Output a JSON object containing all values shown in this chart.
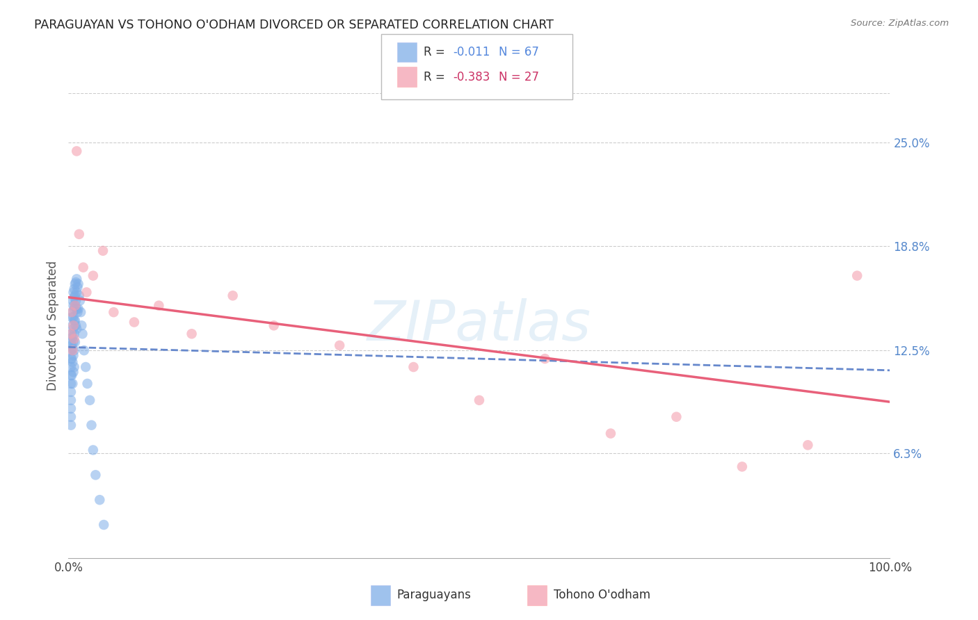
{
  "title": "PARAGUAYAN VS TOHONO O'ODHAM DIVORCED OR SEPARATED CORRELATION CHART",
  "source": "Source: ZipAtlas.com",
  "ylabel": "Divorced or Separated",
  "watermark": "ZIPatlas",
  "ytick_labels": [
    "25.0%",
    "18.8%",
    "12.5%",
    "6.3%"
  ],
  "ytick_values": [
    0.25,
    0.188,
    0.125,
    0.063
  ],
  "xmin": 0.0,
  "xmax": 1.0,
  "ymin": 0.0,
  "ymax": 0.28,
  "blue_color": "#7faee8",
  "pink_color": "#f4a0b0",
  "blue_line_color": "#6688cc",
  "pink_line_color": "#e8607a",
  "paraguayan_x": [
    0.003,
    0.003,
    0.003,
    0.003,
    0.003,
    0.003,
    0.003,
    0.003,
    0.003,
    0.003,
    0.003,
    0.004,
    0.004,
    0.004,
    0.004,
    0.004,
    0.005,
    0.005,
    0.005,
    0.005,
    0.005,
    0.005,
    0.005,
    0.006,
    0.006,
    0.006,
    0.006,
    0.006,
    0.006,
    0.006,
    0.007,
    0.007,
    0.007,
    0.007,
    0.007,
    0.007,
    0.007,
    0.008,
    0.008,
    0.008,
    0.008,
    0.008,
    0.009,
    0.009,
    0.009,
    0.01,
    0.01,
    0.01,
    0.01,
    0.011,
    0.011,
    0.012,
    0.012,
    0.013,
    0.014,
    0.015,
    0.016,
    0.017,
    0.019,
    0.021,
    0.023,
    0.026,
    0.028,
    0.03,
    0.033,
    0.038,
    0.043
  ],
  "paraguayan_y": [
    0.13,
    0.125,
    0.12,
    0.115,
    0.11,
    0.105,
    0.1,
    0.095,
    0.09,
    0.085,
    0.08,
    0.145,
    0.135,
    0.128,
    0.12,
    0.11,
    0.155,
    0.148,
    0.14,
    0.133,
    0.126,
    0.118,
    0.105,
    0.16,
    0.152,
    0.145,
    0.138,
    0.13,
    0.122,
    0.112,
    0.162,
    0.157,
    0.15,
    0.143,
    0.135,
    0.125,
    0.115,
    0.165,
    0.158,
    0.152,
    0.143,
    0.13,
    0.166,
    0.155,
    0.14,
    0.168,
    0.16,
    0.15,
    0.138,
    0.163,
    0.148,
    0.165,
    0.15,
    0.158,
    0.155,
    0.148,
    0.14,
    0.135,
    0.125,
    0.115,
    0.105,
    0.095,
    0.08,
    0.065,
    0.05,
    0.035,
    0.02
  ],
  "tohono_x": [
    0.003,
    0.004,
    0.005,
    0.006,
    0.007,
    0.008,
    0.01,
    0.013,
    0.018,
    0.022,
    0.03,
    0.042,
    0.055,
    0.08,
    0.11,
    0.15,
    0.2,
    0.25,
    0.33,
    0.42,
    0.5,
    0.58,
    0.66,
    0.74,
    0.82,
    0.9,
    0.96
  ],
  "tohono_y": [
    0.135,
    0.148,
    0.125,
    0.14,
    0.132,
    0.152,
    0.245,
    0.195,
    0.175,
    0.16,
    0.17,
    0.185,
    0.148,
    0.142,
    0.152,
    0.135,
    0.158,
    0.14,
    0.128,
    0.115,
    0.095,
    0.12,
    0.075,
    0.085,
    0.055,
    0.068,
    0.17
  ],
  "blue_line_x0": 0.0,
  "blue_line_x1": 1.0,
  "blue_line_y0": 0.127,
  "blue_line_y1": 0.113,
  "pink_line_x0": 0.0,
  "pink_line_x1": 1.0,
  "pink_line_y0": 0.157,
  "pink_line_y1": 0.094
}
